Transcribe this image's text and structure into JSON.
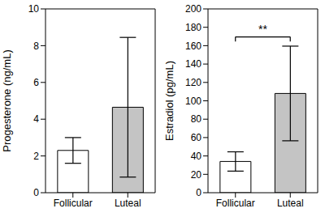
{
  "chart_data": [
    {
      "type": "bar",
      "y_label": "Progesterone (ng/mL)",
      "categories": [
        "Follicular",
        "Luteal"
      ],
      "values": [
        2.3,
        4.65
      ],
      "errors": [
        0.7,
        3.8
      ],
      "colors": [
        "#ffffff",
        "#c4c4c4"
      ],
      "ylim": [
        0,
        10
      ],
      "yticks": [
        0,
        2,
        4,
        6,
        8,
        10
      ]
    },
    {
      "type": "bar",
      "y_label": "Estradiol (pg/mL)",
      "categories": [
        "Follicular",
        "Luteal"
      ],
      "values": [
        34,
        108
      ],
      "errors": [
        10.5,
        51.5
      ],
      "colors": [
        "#ffffff",
        "#c4c4c4"
      ],
      "ylim": [
        0,
        200
      ],
      "yticks": [
        0,
        20,
        40,
        60,
        80,
        100,
        120,
        140,
        160,
        180,
        200
      ],
      "annotation": "**"
    }
  ]
}
